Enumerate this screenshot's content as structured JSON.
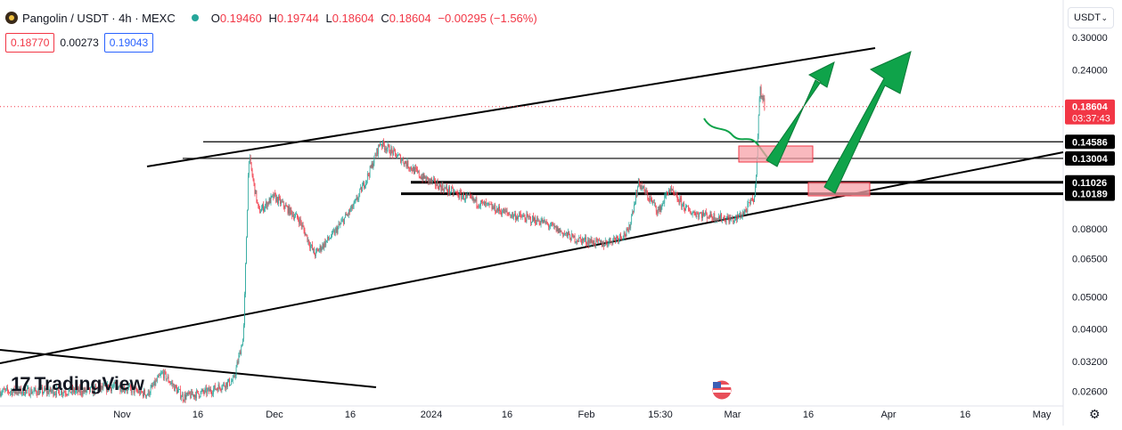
{
  "header": {
    "symbol": "Pangolin / USDT · 4h · MEXC",
    "ohlc": [
      {
        "k": "O",
        "v": "0.19460"
      },
      {
        "k": "H",
        "v": "0.19744"
      },
      {
        "k": "L",
        "v": "0.18604"
      },
      {
        "k": "C",
        "v": "0.18604"
      },
      {
        "k": "",
        "v": "−0.00295 (−1.56%)"
      }
    ],
    "sell_price": "0.18770",
    "spread": "0.00273",
    "buy_price": "0.19043",
    "currency": "USDT"
  },
  "branding": "TradingView",
  "colors": {
    "up": "#26a69a",
    "down": "#f23645",
    "arrow": "#0fa34a",
    "zone": "#f7a1a8"
  },
  "chart_data": {
    "type": "candlestick",
    "y_scale": "log",
    "ylim": [
      0.0235,
      0.37
    ],
    "y_ticks": [
      "0.30000",
      "0.24000",
      "0.18604",
      "0.14586",
      "0.13004",
      "0.11026",
      "0.10189",
      "0.08000",
      "0.06500",
      "0.05000",
      "0.04000",
      "0.03200",
      "0.02600"
    ],
    "x_ticks": [
      "Nov",
      "16",
      "Dec",
      "16",
      "2024",
      "16",
      "Feb",
      "15:30",
      "Mar",
      "16",
      "Apr",
      "16",
      "May"
    ],
    "last_price": {
      "value": "0.18604",
      "countdown": "03:37:43"
    },
    "levels": [
      {
        "label": "0.14586",
        "value": 0.14586
      },
      {
        "label": "0.13004",
        "value": 0.13004
      },
      {
        "label": "0.11026",
        "value": 0.11026
      },
      {
        "label": "0.10189",
        "value": 0.10189
      }
    ],
    "price_path": [
      [
        "Oct 24",
        0.026
      ],
      [
        "Oct 30",
        0.027
      ],
      [
        "Nov 5",
        0.0255
      ],
      [
        "Nov 8",
        0.0295
      ],
      [
        "Nov 12",
        0.025
      ],
      [
        "Nov 17",
        0.026
      ],
      [
        "Nov 22",
        0.028
      ],
      [
        "Nov 24",
        0.038
      ],
      [
        "Nov 25",
        0.133
      ],
      [
        "Nov 27",
        0.09
      ],
      [
        "Nov 30",
        0.1
      ],
      [
        "Dec 5",
        0.085
      ],
      [
        "Dec 8",
        0.067
      ],
      [
        "Dec 12",
        0.078
      ],
      [
        "Dec 16",
        0.095
      ],
      [
        "Dec 19",
        0.12
      ],
      [
        "Dec 21",
        0.145
      ],
      [
        "Dec 25",
        0.13
      ],
      [
        "Dec 29",
        0.115
      ],
      [
        "Jan 3",
        0.105
      ],
      [
        "Jan 10",
        0.095
      ],
      [
        "Jan 16",
        0.088
      ],
      [
        "Jan 22",
        0.084
      ],
      [
        "Jan 28",
        0.075
      ],
      [
        "Feb 3",
        0.072
      ],
      [
        "Feb 8",
        0.078
      ],
      [
        "Feb 10",
        0.11
      ],
      [
        "Feb 14",
        0.09
      ],
      [
        "Feb 16",
        0.105
      ],
      [
        "Feb 20",
        0.09
      ],
      [
        "Feb 25",
        0.087
      ],
      [
        "Feb 29",
        0.085
      ],
      [
        "Mar 2",
        0.09
      ],
      [
        "Mar 4",
        0.1
      ],
      [
        "Mar 5",
        0.21
      ],
      [
        "Mar 6",
        0.186
      ]
    ]
  }
}
